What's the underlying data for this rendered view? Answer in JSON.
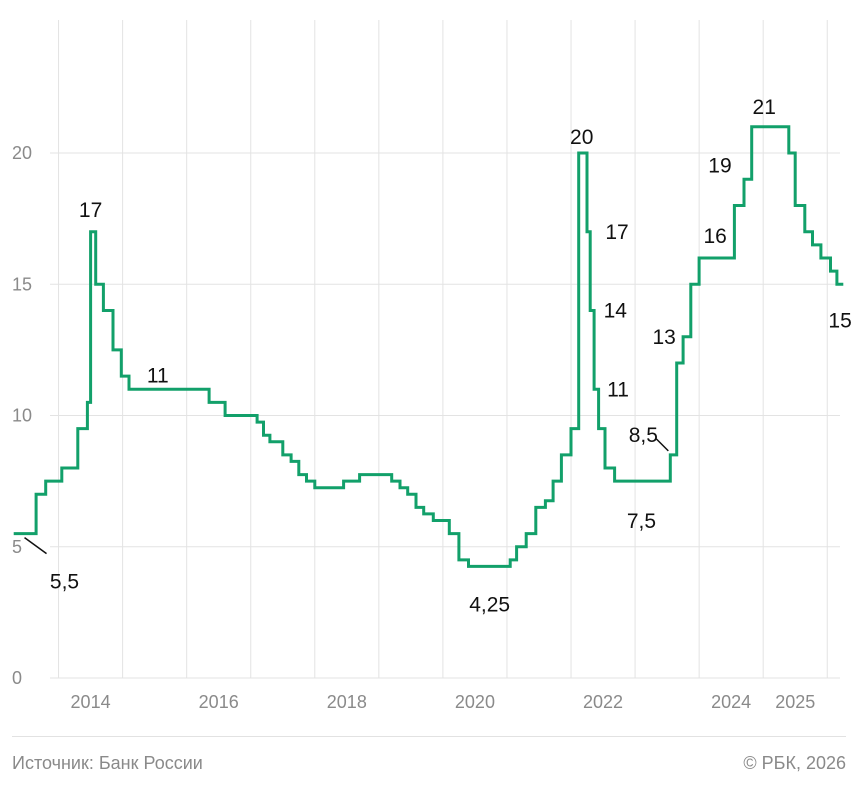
{
  "chart_data": {
    "type": "line",
    "interpolation": "step",
    "title": "",
    "xlabel": "",
    "ylabel": "",
    "ylim": [
      0,
      25
    ],
    "grid": true,
    "y_ticks": [
      "0",
      "5",
      "10",
      "15",
      "20"
    ],
    "x_ticks": [
      {
        "value": 2014,
        "label": "2014"
      },
      {
        "value": 2016,
        "label": "2016"
      },
      {
        "value": 2018,
        "label": "2018"
      },
      {
        "value": 2020,
        "label": "2020"
      },
      {
        "value": 2022,
        "label": "2022"
      },
      {
        "value": 2024,
        "label": "2024"
      },
      {
        "value": 2025,
        "label": "2025"
      }
    ],
    "series": [
      {
        "color": "#12a06a",
        "points": [
          [
            2013.3,
            5.5
          ],
          [
            2013.65,
            7.0
          ],
          [
            2013.8,
            7.5
          ],
          [
            2014.05,
            8.0
          ],
          [
            2014.3,
            9.5
          ],
          [
            2014.45,
            10.5
          ],
          [
            2014.5,
            17.0
          ],
          [
            2014.58,
            15.0
          ],
          [
            2014.7,
            14.0
          ],
          [
            2014.85,
            12.5
          ],
          [
            2014.98,
            11.5
          ],
          [
            2015.1,
            11.0
          ],
          [
            2016.35,
            10.5
          ],
          [
            2016.6,
            10.0
          ],
          [
            2017.1,
            9.75
          ],
          [
            2017.2,
            9.25
          ],
          [
            2017.3,
            9.0
          ],
          [
            2017.5,
            8.5
          ],
          [
            2017.63,
            8.25
          ],
          [
            2017.75,
            7.75
          ],
          [
            2017.87,
            7.5
          ],
          [
            2018.0,
            7.25
          ],
          [
            2018.45,
            7.5
          ],
          [
            2018.7,
            7.75
          ],
          [
            2019.2,
            7.5
          ],
          [
            2019.33,
            7.25
          ],
          [
            2019.45,
            7.0
          ],
          [
            2019.58,
            6.5
          ],
          [
            2019.7,
            6.25
          ],
          [
            2019.85,
            6.0
          ],
          [
            2020.1,
            5.5
          ],
          [
            2020.25,
            4.5
          ],
          [
            2020.4,
            4.25
          ],
          [
            2021.05,
            4.5
          ],
          [
            2021.15,
            5.0
          ],
          [
            2021.3,
            5.5
          ],
          [
            2021.45,
            6.5
          ],
          [
            2021.6,
            6.75
          ],
          [
            2021.72,
            7.5
          ],
          [
            2021.85,
            8.5
          ],
          [
            2022.0,
            9.5
          ],
          [
            2022.12,
            20.0
          ],
          [
            2022.25,
            17.0
          ],
          [
            2022.3,
            14.0
          ],
          [
            2022.36,
            11.0
          ],
          [
            2022.43,
            9.5
          ],
          [
            2022.53,
            8.0
          ],
          [
            2022.68,
            7.5
          ],
          [
            2023.55,
            8.5
          ],
          [
            2023.65,
            12.0
          ],
          [
            2023.75,
            13.0
          ],
          [
            2023.87,
            15.0
          ],
          [
            2024.0,
            16.0
          ],
          [
            2024.55,
            18.0
          ],
          [
            2024.7,
            19.0
          ],
          [
            2024.82,
            21.0
          ],
          [
            2025.4,
            20.0
          ],
          [
            2025.5,
            18.0
          ],
          [
            2025.65,
            17.0
          ],
          [
            2025.77,
            16.5
          ],
          [
            2025.9,
            16.0
          ],
          [
            2026.05,
            15.5
          ],
          [
            2026.15,
            15.0
          ],
          [
            2026.25,
            15.0
          ]
        ]
      }
    ],
    "annotations": [
      {
        "text": "5,5",
        "x": 2013.5,
        "y": 5.5,
        "leader": true
      },
      {
        "text": "17",
        "x": 2014.5,
        "y": 17.0
      },
      {
        "text": "11",
        "x": 2015.55,
        "y": 11.0
      },
      {
        "text": "4,25",
        "x": 2020.73,
        "y": 4.25
      },
      {
        "text": "20",
        "x": 2022.12,
        "y": 20.0
      },
      {
        "text": "17",
        "x": 2022.25,
        "y": 17.0
      },
      {
        "text": "14",
        "x": 2022.3,
        "y": 14.0
      },
      {
        "text": "11",
        "x": 2022.36,
        "y": 11.0
      },
      {
        "text": "7,5",
        "x": 2023.1,
        "y": 7.5
      },
      {
        "text": "8,5",
        "x": 2023.55,
        "y": 8.5,
        "leader": true
      },
      {
        "text": "13",
        "x": 2023.75,
        "y": 13.0
      },
      {
        "text": "16",
        "x": 2024.0,
        "y": 16.0
      },
      {
        "text": "19",
        "x": 2024.7,
        "y": 19.0
      },
      {
        "text": "21",
        "x": 2025.0,
        "y": 21.0
      },
      {
        "text": "15",
        "x": 2026.2,
        "y": 15.0
      }
    ]
  },
  "footer": {
    "source": "Источник: Банк России",
    "copyright": "© РБК, 2026"
  }
}
